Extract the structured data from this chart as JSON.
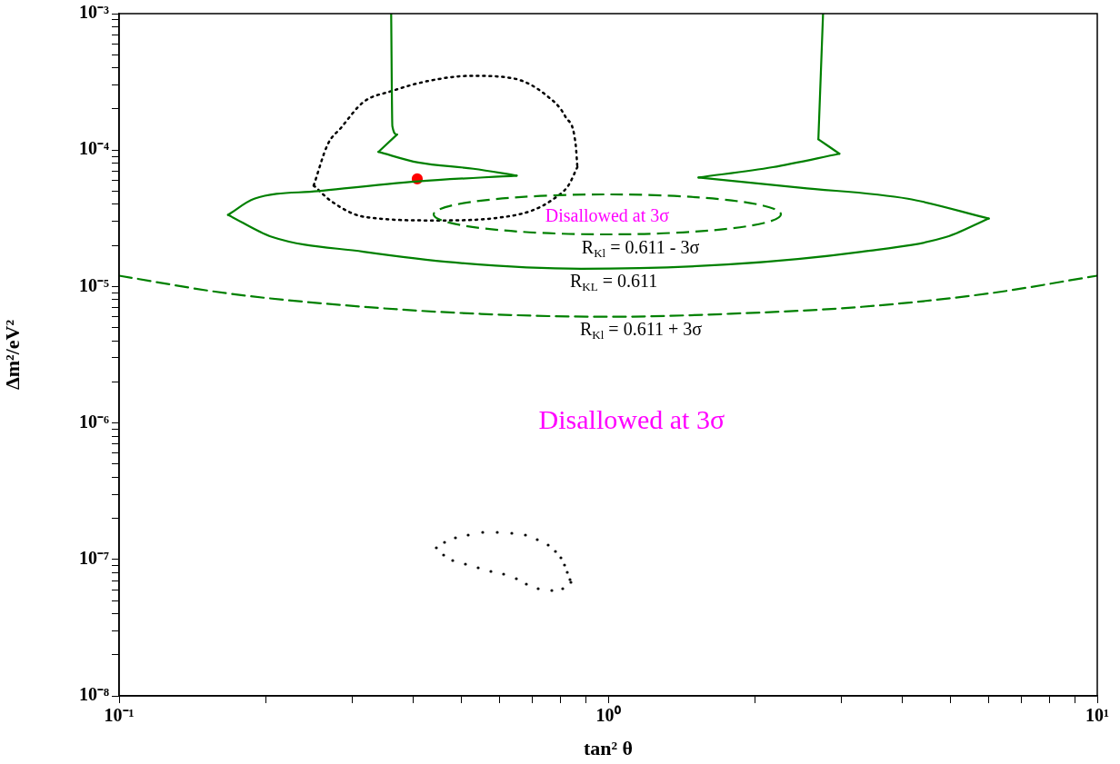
{
  "chart_data": {
    "type": "line",
    "xlabel": "tan² θ",
    "ylabel": "Δm²/eV²",
    "log": "xy",
    "grid": false,
    "legend": false,
    "xlim": [
      0.1,
      10
    ],
    "ylim": [
      1e-08,
      0.001
    ],
    "xticks": [
      {
        "value": 0.1,
        "label": "10⁻¹"
      },
      {
        "value": 0.2,
        "label": null
      },
      {
        "value": 0.3,
        "label": null
      },
      {
        "value": 0.4,
        "label": null
      },
      {
        "value": 0.5,
        "label": null
      },
      {
        "value": 0.6,
        "label": null
      },
      {
        "value": 0.7,
        "label": null
      },
      {
        "value": 0.8,
        "label": null
      },
      {
        "value": 0.9,
        "label": null
      },
      {
        "value": 1,
        "label": "10⁰"
      },
      {
        "value": 2,
        "label": null
      },
      {
        "value": 3,
        "label": null
      },
      {
        "value": 4,
        "label": null
      },
      {
        "value": 5,
        "label": null
      },
      {
        "value": 6,
        "label": null
      },
      {
        "value": 7,
        "label": null
      },
      {
        "value": 8,
        "label": null
      },
      {
        "value": 9,
        "label": null
      },
      {
        "value": 10,
        "label": "10¹"
      }
    ],
    "yticks": [
      {
        "value": 1e-08,
        "label": "10⁻⁸"
      },
      {
        "value": 2e-08,
        "label": null
      },
      {
        "value": 3e-08,
        "label": null
      },
      {
        "value": 4e-08,
        "label": null
      },
      {
        "value": 5e-08,
        "label": null
      },
      {
        "value": 6e-08,
        "label": null
      },
      {
        "value": 7e-08,
        "label": null
      },
      {
        "value": 8e-08,
        "label": null
      },
      {
        "value": 9e-08,
        "label": null
      },
      {
        "value": 1e-07,
        "label": "10⁻⁷"
      },
      {
        "value": 2e-07,
        "label": null
      },
      {
        "value": 3e-07,
        "label": null
      },
      {
        "value": 4e-07,
        "label": null
      },
      {
        "value": 5e-07,
        "label": null
      },
      {
        "value": 6e-07,
        "label": null
      },
      {
        "value": 7e-07,
        "label": null
      },
      {
        "value": 8e-07,
        "label": null
      },
      {
        "value": 9e-07,
        "label": null
      },
      {
        "value": 1e-06,
        "label": "10⁻⁶"
      },
      {
        "value": 2e-06,
        "label": null
      },
      {
        "value": 3e-06,
        "label": null
      },
      {
        "value": 4e-06,
        "label": null
      },
      {
        "value": 5e-06,
        "label": null
      },
      {
        "value": 6e-06,
        "label": null
      },
      {
        "value": 7e-06,
        "label": null
      },
      {
        "value": 8e-06,
        "label": null
      },
      {
        "value": 9e-06,
        "label": null
      },
      {
        "value": 1e-05,
        "label": "10⁻⁵"
      },
      {
        "value": 2e-05,
        "label": null
      },
      {
        "value": 3e-05,
        "label": null
      },
      {
        "value": 4e-05,
        "label": null
      },
      {
        "value": 5e-05,
        "label": null
      },
      {
        "value": 6e-05,
        "label": null
      },
      {
        "value": 7e-05,
        "label": null
      },
      {
        "value": 8e-05,
        "label": null
      },
      {
        "value": 9e-05,
        "label": null
      },
      {
        "value": 0.0001,
        "label": "10⁻⁴"
      },
      {
        "value": 0.0002,
        "label": null
      },
      {
        "value": 0.0003,
        "label": null
      },
      {
        "value": 0.0004,
        "label": null
      },
      {
        "value": 0.0005,
        "label": null
      },
      {
        "value": 0.0006,
        "label": null
      },
      {
        "value": 0.0007,
        "label": null
      },
      {
        "value": 0.0008,
        "label": null
      },
      {
        "value": 0.0009,
        "label": null
      },
      {
        "value": 0.001,
        "label": "10⁻³"
      }
    ],
    "series": [
      {
        "color": "#008000",
        "line_style": "solid",
        "marker": "none",
        "x": [
          0.36,
          0.362,
          0.37
        ],
        "values": [
          0.001,
          0.00015,
          0.00013
        ]
      },
      {
        "color": "#008000",
        "line_style": "solid",
        "marker": "none",
        "x": [
          0.339,
          0.37
        ],
        "values": [
          9.7e-05,
          0.00013
        ]
      },
      {
        "color": "#008000",
        "line_style": "solid",
        "marker": "none",
        "x": [
          0.339,
          0.409,
          0.53,
          0.65
        ],
        "values": [
          9.7e-05,
          8.1e-05,
          7.3e-05,
          6.5e-05
        ]
      },
      {
        "color": "#008000",
        "line_style": "solid",
        "marker": "none",
        "x": [
          0.167,
          0.189,
          0.255,
          0.409,
          0.65
        ],
        "values": [
          3.35e-05,
          4.4e-05,
          5e-05,
          5.9e-05,
          6.5e-05
        ]
      },
      {
        "name": "R$_{KL}$ = 0.611",
        "color": "#008000",
        "line_style": "solid",
        "marker": "none",
        "x": [
          0.167,
          0.206,
          0.316,
          0.485,
          0.88,
          1.75,
          3.3,
          4.9,
          6.0
        ],
        "values": [
          3.35e-05,
          2.3e-05,
          1.8e-05,
          1.5e-05,
          1.35e-05,
          1.45e-05,
          1.8e-05,
          2.3e-05,
          3.15e-05
        ]
      },
      {
        "color": "#008000",
        "line_style": "solid",
        "marker": "none",
        "x": [
          1.53,
          2.47,
          4.1,
          6.0
        ],
        "values": [
          6.3e-05,
          5.3e-05,
          4.4e-05,
          3.15e-05
        ]
      },
      {
        "color": "#008000",
        "line_style": "solid",
        "marker": "none",
        "x": [
          1.53,
          2.17,
          2.97
        ],
        "values": [
          6.3e-05,
          7.5e-05,
          9.4e-05
        ]
      },
      {
        "color": "#008000",
        "line_style": "solid",
        "marker": "none",
        "x": [
          2.69,
          2.97
        ],
        "values": [
          0.00012,
          9.4e-05
        ]
      },
      {
        "color": "#008000",
        "line_style": "solid",
        "marker": "none",
        "x": [
          2.69,
          2.75
        ],
        "values": [
          0.00012,
          0.001
        ]
      },
      {
        "name": "R$_{Kl}$ = 0.611 + 3σ",
        "color": "#008000",
        "line_style": "dashed",
        "marker": "none",
        "x": [
          0.1,
          0.167,
          0.316,
          0.55,
          1.0,
          1.75,
          3.3,
          6.0,
          10
        ],
        "values": [
          1.2e-05,
          8.9e-06,
          7.1e-06,
          6.3e-06,
          6e-06,
          6.3e-06,
          7.1e-06,
          8.9e-06,
          1.2e-05
        ]
      },
      {
        "color": "#000000",
        "line_style": "dotted",
        "marker": "none",
        "x": [
          0.25,
          0.267,
          0.284,
          0.316,
          0.36,
          0.427,
          0.524,
          0.64,
          0.744,
          0.818,
          0.858,
          0.865
        ],
        "values": [
          5.5e-05,
          0.00011,
          0.000145,
          0.000225,
          0.00027,
          0.00032,
          0.00035,
          0.000335,
          0.000255,
          0.000175,
          0.00011,
          7.5e-05
        ]
      },
      {
        "color": "#000000",
        "line_style": "dotted",
        "marker": "none",
        "x": [
          0.25,
          0.272,
          0.316,
          0.445,
          0.6,
          0.698,
          0.767,
          0.829,
          0.865
        ],
        "values": [
          5.5e-05,
          4.2e-05,
          3.25e-05,
          3.05e-05,
          3.2e-05,
          3.6e-05,
          4.3e-05,
          5.5e-05,
          7.5e-05
        ]
      },
      {
        "type": "scatter",
        "color": "#ff0000",
        "marker": "circle",
        "x": [
          0.407
        ],
        "values": [
          6.15e-05
        ]
      }
    ],
    "annotations": [
      "Disallowed at 3σ",
      "R$_{Kl}$ = 0.611 - 3σ",
      "Disallowed at 3σ"
    ]
  }
}
